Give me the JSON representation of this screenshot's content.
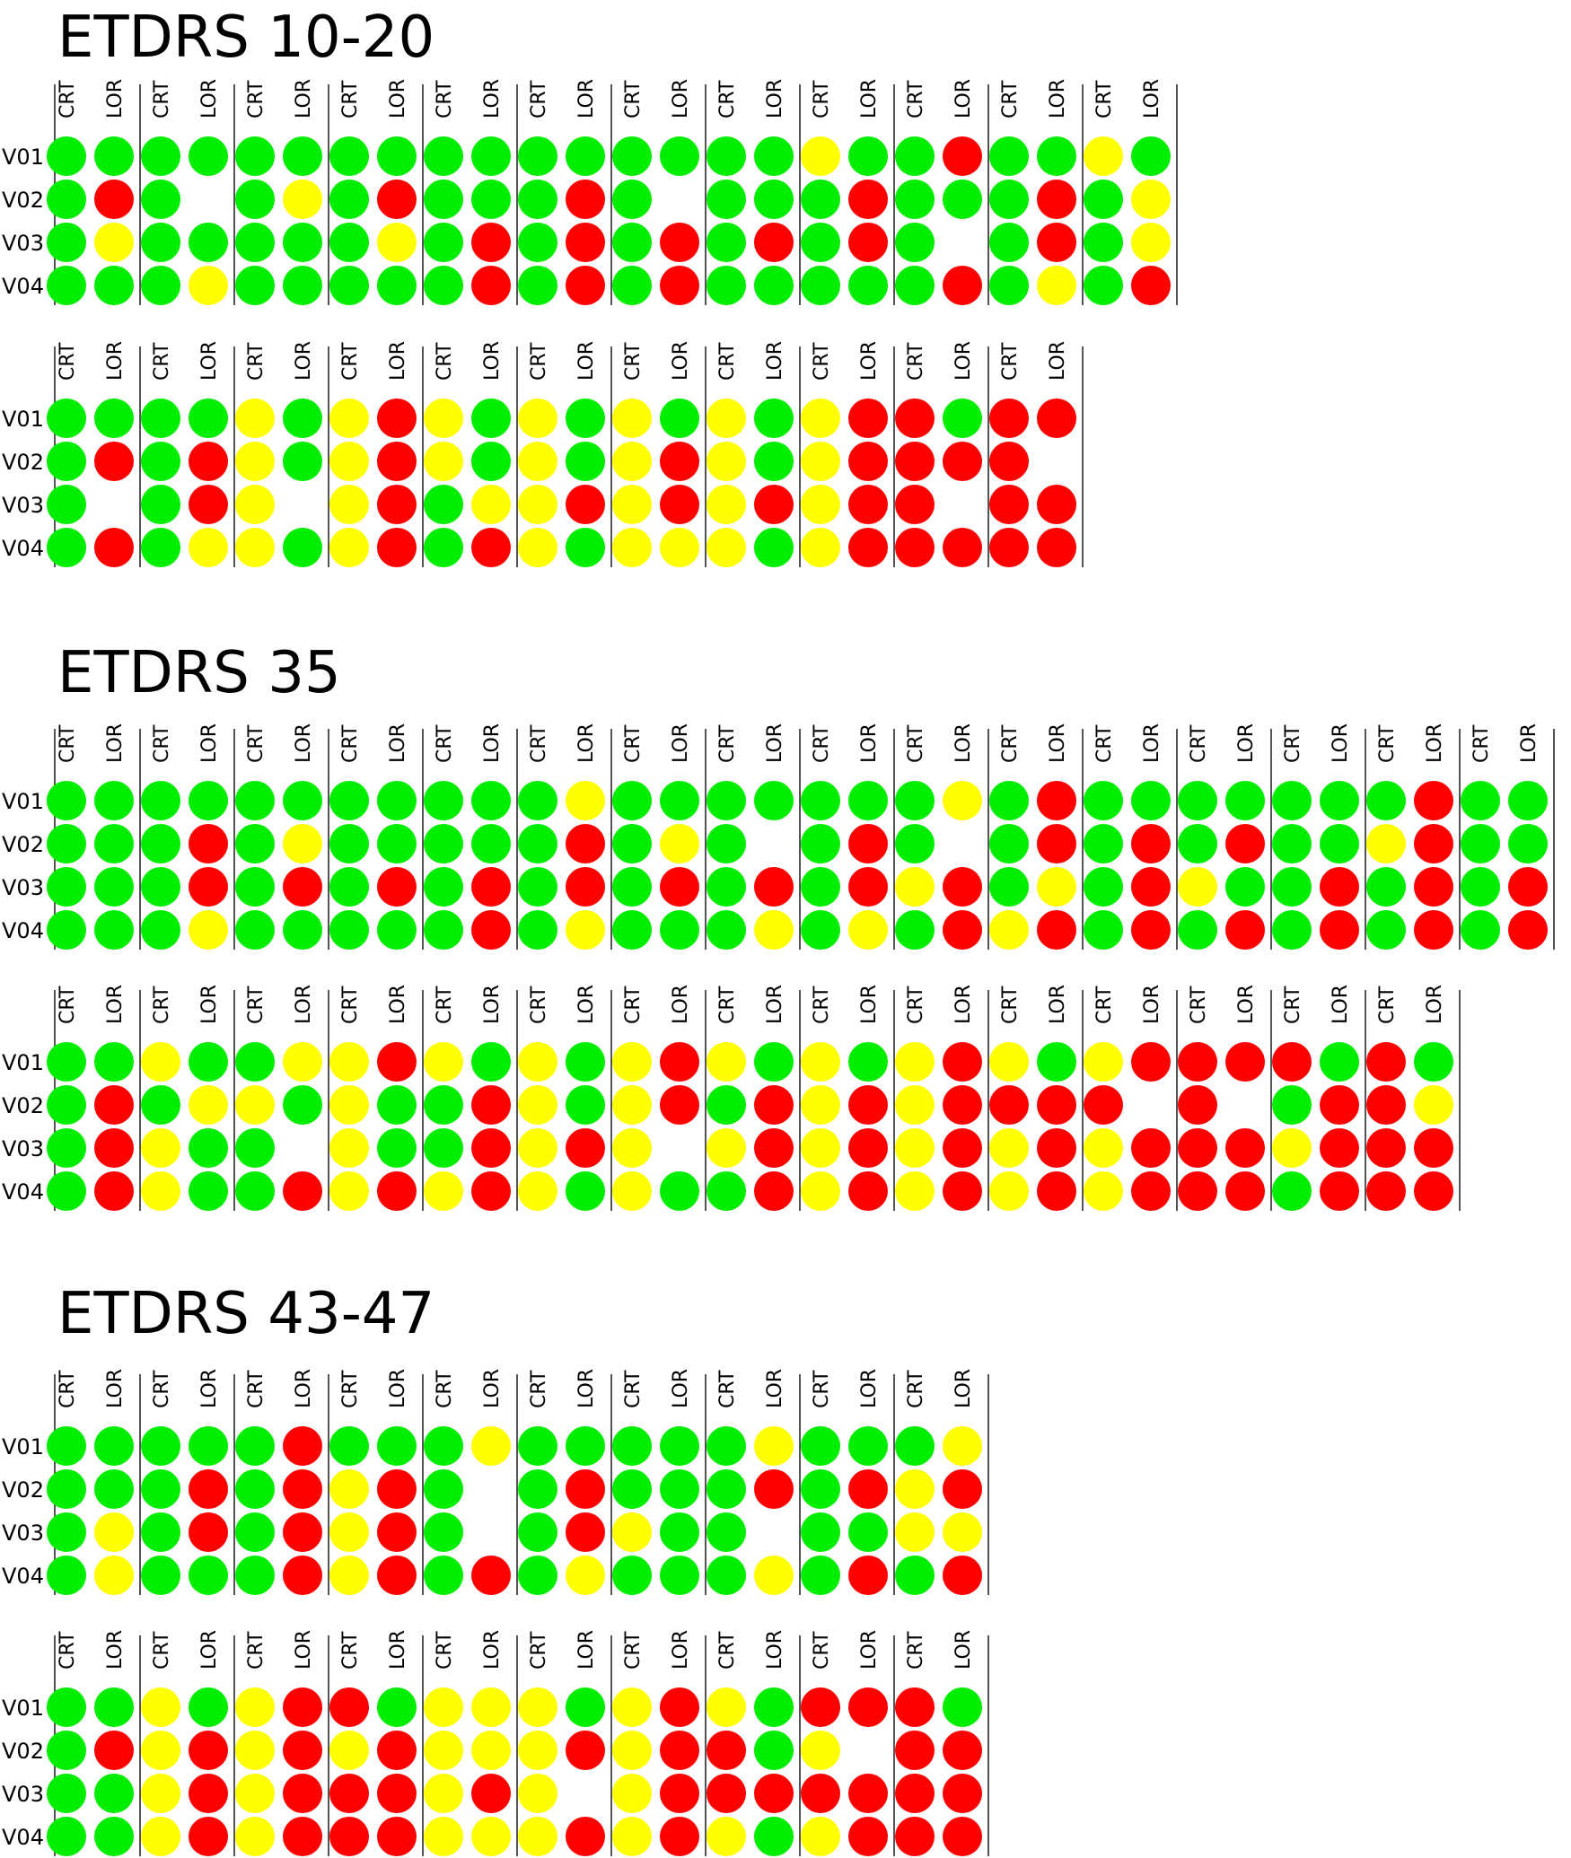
{
  "labels": {
    "columns": [
      "CRT",
      "LOR"
    ],
    "rows": [
      "V01",
      "V02",
      "V03",
      "V04"
    ]
  },
  "colors": {
    "G": "#00ee00",
    "Y": "#ffff00",
    "R": "#ff0000",
    "line": "#555555"
  },
  "sections": [
    {
      "title": "ETDRS 10-20",
      "panels": [
        [
          "GG/GR/GY/GG",
          "GG/G_/GG/GY",
          "GG/GY/GG/GG",
          "GG/GR/GY/GG",
          "GG/GG/GR/GR",
          "GG/GR/GR/GR",
          "GG/G_/GR/GR",
          "GG/GG/GR/GG",
          "YG/GR/GR/GG",
          "GR/GG/G_/GR",
          "GG/GR/GR/GY",
          "YG/GY/GY/GR",
          "GG/GR/G_/GR",
          "GG/GR/GR/GY",
          "YG/YG/Y_/YG",
          "YR/YR/YR/YR",
          "YG/YG/GY/GR",
          "YG/YG/YR/YG",
          "YG/YR/YR/YY",
          "YG/YG/YR/YG",
          "YR/YR/YR/YR",
          "RG/RR/R_/RR",
          "RR/R_/RR/RR"
        ]
      ],
      "rows_of_panels": [
        12,
        11
      ]
    },
    {
      "title": "ETDRS 35",
      "panels": [
        [
          "GG/GG/GG/GG",
          "GG/GR/GR/GY",
          "GG/GY/GR/GG",
          "GG/GG/GR/GG",
          "GG/GG/GR/GR",
          "GY/GR/GR/GY",
          "GG/GY/GR/GG",
          "GG/G_/GR/GY",
          "GG/GR/GR/GY",
          "GY/G_/YR/GR",
          "GR/GR/GY/YR",
          "GG/GR/GR/GR",
          "GG/GR/YG/GR",
          "GG/GG/GR/GR",
          "GR/YR/GR/GR",
          "GG/GG/GR/GR",
          "GG/GR/GR/GR",
          "YG/GY/YG/YG",
          "GY/YG/G_/GR",
          "YR/YG/YG/YR",
          "YG/GR/GR/YR",
          "YG/YG/YR/YG",
          "YR/YR/Y_/YG",
          "YG/GR/YR/GR",
          "YG/YR/YR/YR",
          "YR/YR/YR/YR",
          "YG/RR/YR/YR",
          "YR/R_/YR/YR",
          "RR/R_/RR/RR",
          "RG/GR/YR/GR",
          "RG/RY/RR/RR"
        ]
      ],
      "rows_of_panels": [
        16,
        15
      ]
    },
    {
      "title": "ETDRS 43-47",
      "panels": [
        [
          "GG/GG/GY/GY",
          "GG/GR/GR/GG",
          "GR/GR/GR/GR",
          "GG/YR/YR/YR",
          "GY/G_/G_/GR",
          "GG/GR/GR/GY",
          "GG/GG/YG/GG",
          "GY/GR/G_/GY",
          "GG/GR/GG/GR",
          "GY/YR/YY/GR",
          "GG/GR/GG/GG",
          "YG/YR/YR/YR",
          "YR/YR/YR/YR",
          "RG/YR/RR/RR",
          "YY/YY/YR/YY",
          "YG/YR/Y_/YR",
          "YR/YR/YR/YR",
          "YG/RG/RR/YG",
          "RR/Y_/RR/YR",
          "RG/RR/RR/RR"
        ]
      ],
      "rows_of_panels": [
        10,
        10
      ]
    }
  ]
}
